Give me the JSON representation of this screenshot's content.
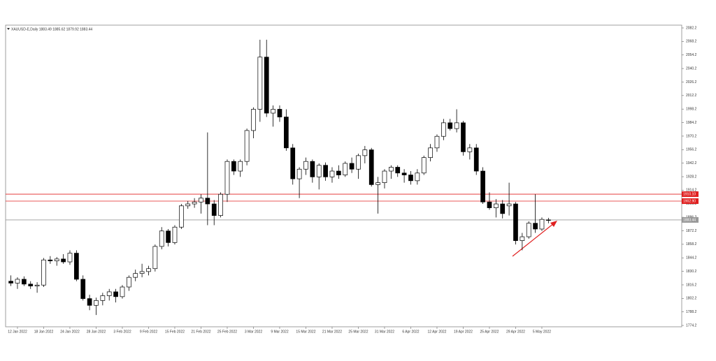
{
  "chart_data": {
    "type": "candlestick",
    "title": "XAUUSD-E,Daily 1883.49 1885.62 1879.92 1883.44",
    "categories": [
      null,
      "12 Jan 2022",
      null,
      null,
      null,
      "18 Jan 2022",
      null,
      null,
      null,
      "24 Jan 2022",
      null,
      null,
      null,
      "28 Jan 2022",
      null,
      null,
      null,
      "3 Feb 2022",
      null,
      null,
      null,
      "9 Feb 2022",
      null,
      null,
      null,
      "15 Feb 2022",
      null,
      null,
      null,
      "21 Feb 2022",
      null,
      null,
      null,
      "25 Feb 2022",
      null,
      null,
      null,
      "3 Mar 2022",
      null,
      null,
      null,
      "9 Mar 2022",
      null,
      null,
      null,
      "15 Mar 2022",
      null,
      null,
      null,
      "21 Mar 2022",
      null,
      null,
      null,
      "25 Mar 2022",
      null,
      null,
      null,
      "31 Mar 2022",
      null,
      null,
      null,
      "6 Apr 2022",
      null,
      null,
      null,
      "12 Apr 2022",
      null,
      null,
      null,
      "19 Apr 2022",
      null,
      null,
      null,
      "25 Apr 2022",
      null,
      null,
      null,
      "29 Apr 2022",
      null,
      null,
      null,
      "5 May 2022",
      null
    ],
    "open": [
      1820,
      1818,
      1822,
      1817,
      1815,
      1816,
      1842,
      1841,
      1843,
      1840,
      1849,
      1822,
      1802,
      1795,
      1800,
      1805,
      1809,
      1804,
      1814,
      1824,
      1828,
      1830,
      1833,
      1856,
      1872,
      1860,
      1876,
      1898,
      1900,
      1902,
      1906,
      1900,
      1888,
      1910,
      1944,
      1934,
      1944,
      1976,
      1998,
      2052,
      1994,
      1998,
      1990,
      1958,
      1926,
      1936,
      1944,
      1928,
      1940,
      1928,
      1934,
      1930,
      1942,
      1936,
      1950,
      1956,
      1920,
      1922,
      1934,
      1938,
      1932,
      1930,
      1924,
      1932,
      1948,
      1958,
      1970,
      1984,
      1978,
      1984,
      1954,
      1958,
      1934,
      1902,
      1896,
      1900,
      1898,
      1900,
      1862,
      1866,
      1880,
      1874,
      1883.49
    ],
    "high": [
      1826,
      1824,
      1825,
      1820,
      1819,
      1844,
      1846,
      1845,
      1848,
      1852,
      1852,
      1826,
      1806,
      1803,
      1808,
      1812,
      1812,
      1816,
      1826,
      1832,
      1838,
      1836,
      1858,
      1876,
      1874,
      1878,
      1900,
      1903,
      1906,
      1910,
      1974,
      1904,
      1912,
      1946,
      1946,
      1946,
      1978,
      2000,
      2070,
      2070,
      2002,
      2002,
      1998,
      1962,
      1938,
      1948,
      1946,
      1942,
      1943,
      1938,
      1940,
      1944,
      1948,
      1952,
      1960,
      1958,
      1928,
      1936,
      1940,
      1940,
      1936,
      1934,
      1936,
      1950,
      1962,
      1972,
      1988,
      1988,
      1998,
      1986,
      1962,
      1962,
      1938,
      1912,
      1905,
      1904,
      1922,
      1902,
      1870,
      1882,
      1910,
      1886,
      1885.62
    ],
    "low": [
      1815,
      1812,
      1815,
      1812,
      1808,
      1814,
      1838,
      1836,
      1838,
      1837,
      1820,
      1800,
      1790,
      1785,
      1795,
      1800,
      1798,
      1802,
      1810,
      1820,
      1824,
      1826,
      1830,
      1853,
      1856,
      1858,
      1874,
      1895,
      1896,
      1890,
      1878,
      1878,
      1886,
      1902,
      1930,
      1928,
      1940,
      1968,
      1985,
      1990,
      1980,
      1985,
      1955,
      1920,
      1906,
      1930,
      1922,
      1915,
      1924,
      1922,
      1926,
      1928,
      1932,
      1926,
      1942,
      1918,
      1890,
      1916,
      1926,
      1928,
      1922,
      1920,
      1920,
      1930,
      1944,
      1954,
      1966,
      1976,
      1974,
      1950,
      1946,
      1930,
      1900,
      1894,
      1886,
      1885,
      1888,
      1858,
      1852,
      1864,
      1870,
      1872,
      1879.92
    ],
    "close": [
      1818,
      1822,
      1817,
      1815,
      1816,
      1842,
      1841,
      1843,
      1840,
      1849,
      1822,
      1802,
      1795,
      1800,
      1805,
      1809,
      1804,
      1814,
      1824,
      1828,
      1830,
      1833,
      1856,
      1872,
      1860,
      1876,
      1898,
      1900,
      1902,
      1906,
      1900,
      1888,
      1910,
      1944,
      1934,
      1944,
      1976,
      1998,
      2052,
      1994,
      1998,
      1990,
      1958,
      1926,
      1936,
      1944,
      1928,
      1940,
      1928,
      1934,
      1930,
      1942,
      1936,
      1950,
      1956,
      1920,
      1922,
      1934,
      1938,
      1932,
      1930,
      1924,
      1932,
      1948,
      1958,
      1970,
      1984,
      1978,
      1984,
      1954,
      1958,
      1934,
      1902,
      1896,
      1900,
      1890,
      1900,
      1862,
      1866,
      1880,
      1874,
      1884,
      1883.44
    ],
    "up_color": "#ffffff",
    "down_color": "#000000",
    "ylim": [
      1772.8,
      2085.1
    ],
    "yticks": [
      1774.2,
      1788.2,
      1802.2,
      1816.2,
      1830.2,
      1844.2,
      1858.2,
      1872.2,
      1886.2,
      1900.2,
      1914.2,
      1928.2,
      1942.2,
      1956.2,
      1970.2,
      1984.2,
      1998.2,
      2012.2,
      2026.2,
      2040.2,
      2054.2,
      2068.2,
      2082.2
    ],
    "hlines": {
      "values": [
        1910.1,
        1902.9,
        1883.44
      ],
      "value_labels": [
        "1910.10",
        "1902.90",
        "1883.44"
      ],
      "colors": [
        "#e02020",
        "#e02020",
        "#999999"
      ]
    }
  }
}
